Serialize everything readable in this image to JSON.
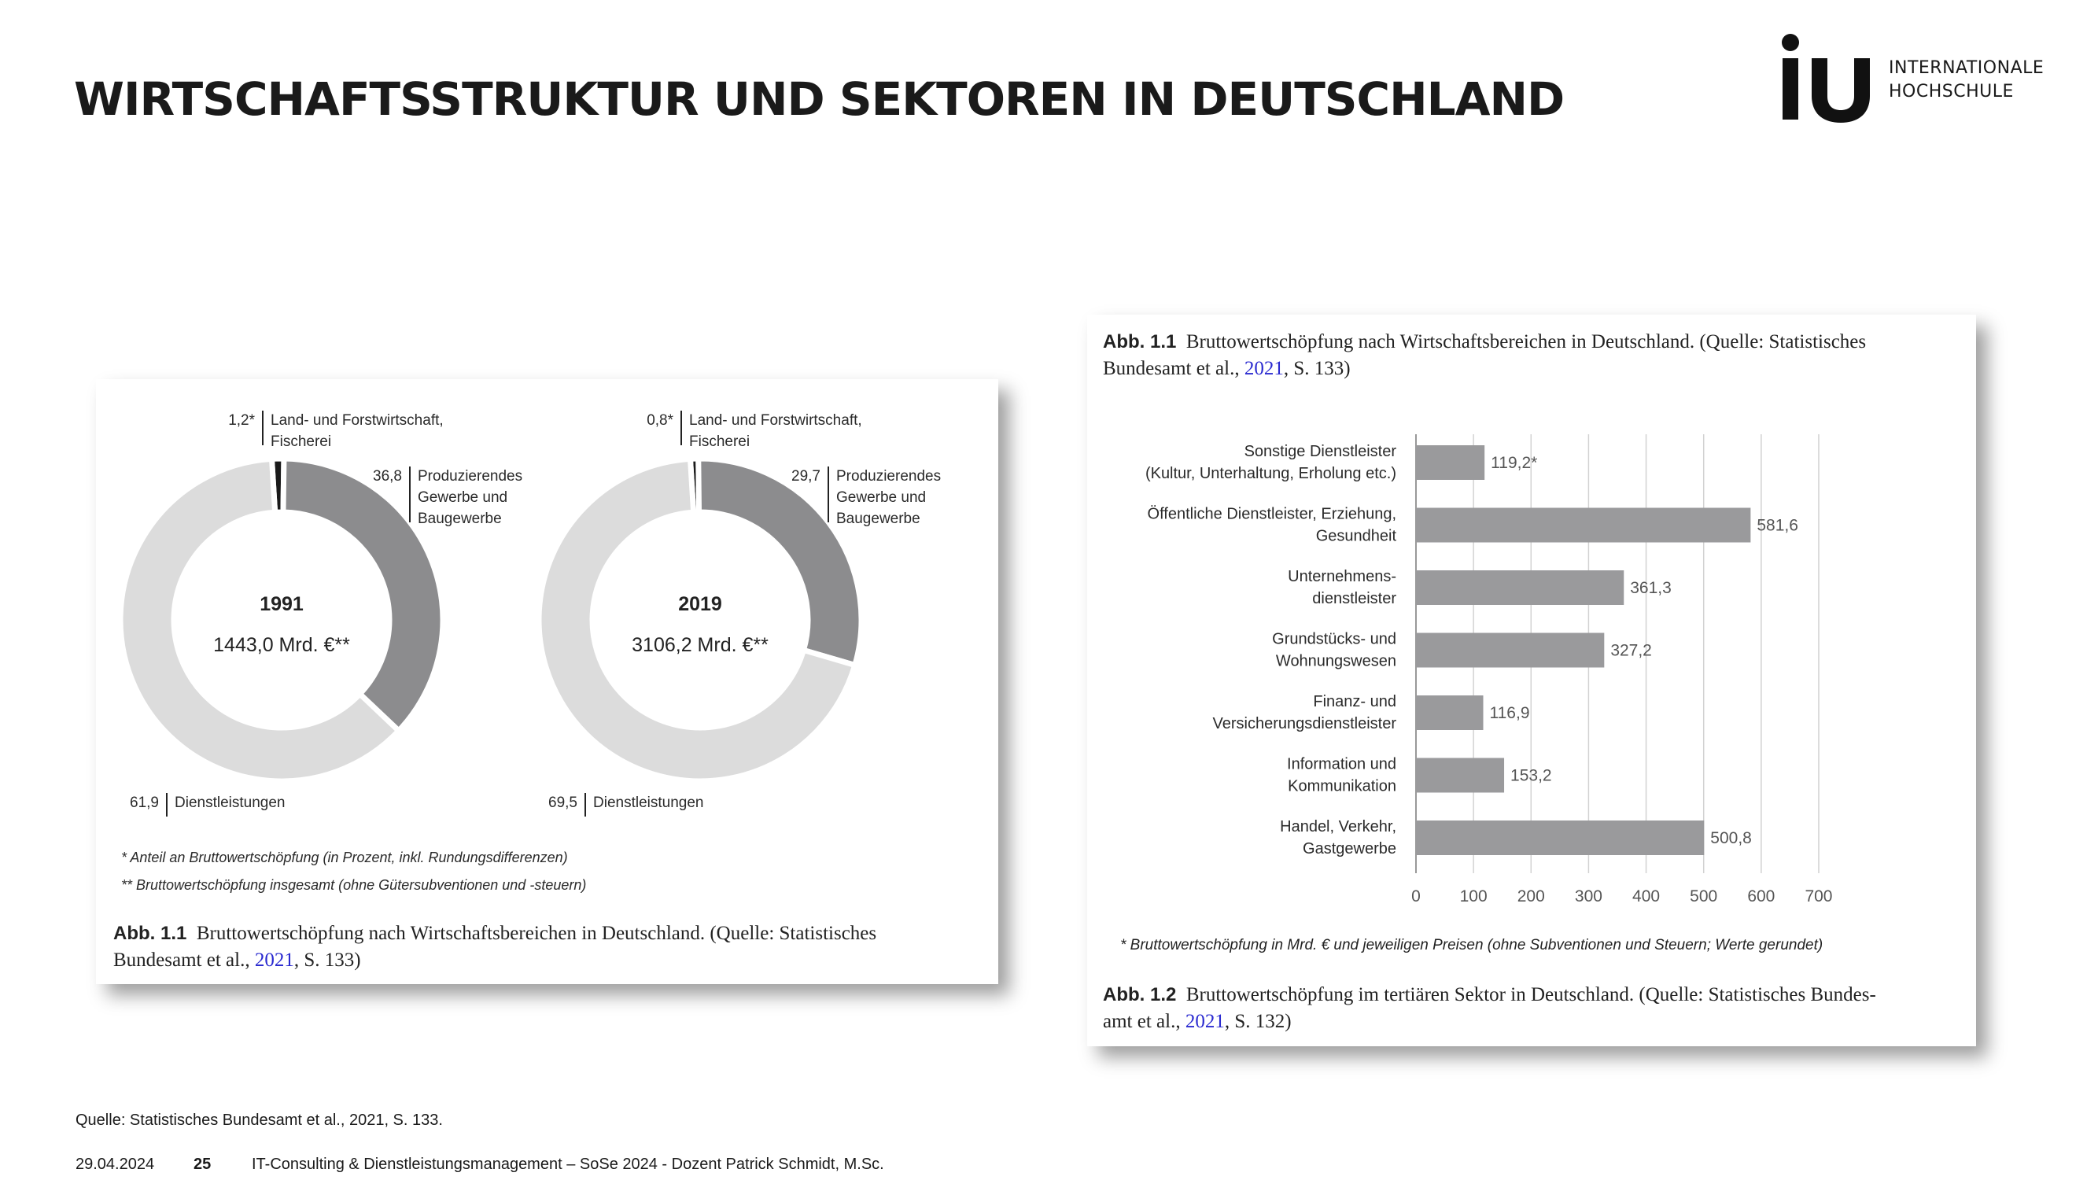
{
  "page": {
    "title": "WIRTSCHAFTSSTRUKTUR UND SEKTOREN IN DEUTSCHLAND",
    "logo": {
      "line1": "INTERNATIONALE",
      "line2": "HOCHSCHULE"
    },
    "source": "Quelle: Statistisches Bundesamt et al., 2021, S. 133.",
    "footer": {
      "date": "29.04.2024",
      "page_number": "25",
      "course": "IT-Consulting & Dienstleistungsmanagement – SoSe 2024 - Dozent Patrick Schmidt, M.Sc."
    }
  },
  "figure1": {
    "caption_label": "Abb. 1.1",
    "caption_text1": "Bruttowertschöpfung nach Wirtschaftsbereichen in Deutschland. (Quelle: Statistisches",
    "caption_text2a": "Bundesamt et al.,",
    "caption_link": "2021",
    "caption_text2b": ", S. 133)",
    "footnote1": "* Anteil an Bruttowertschöpfung (in Prozent, inkl. Rundungsdifferenzen)",
    "footnote2": "** Bruttowertschöpfung insgesamt (ohne Gütersubventionen und -steuern)"
  },
  "figure2": {
    "header_label": "Abb. 1.1",
    "header_text1": "Bruttowertschöpfung nach Wirtschaftsbereichen in Deutschland. (Quelle: Statistisches",
    "header_text2a": "Bundesamt et al.,",
    "header_link": "2021",
    "header_text2b": ", S. 133)",
    "footnote": "* Bruttowertschöpfung in Mrd. € und jeweiligen Preisen (ohne Subventionen und Steuern; Werte gerundet)",
    "caption_label": "Abb. 1.2",
    "caption_text1": "Bruttowertschöpfung im tertiären Sektor in Deutschland. (Quelle: Statistisches Bundes-",
    "caption_text2a": "amt et al.,",
    "caption_link": "2021",
    "caption_text2b": ", S. 132)"
  },
  "chart_data": [
    {
      "type": "pie",
      "variant": "donut",
      "center_year": "1991",
      "center_total": "1443,0 Mrd. €**",
      "slices": [
        {
          "label_lines": [
            "Land- und Forstwirtschaft,",
            "Fischerei"
          ],
          "value": 1.2,
          "value_text": "1,2*",
          "color": "#1a1a1a"
        },
        {
          "label_lines": [
            "Produzierendes",
            "Gewerbe und",
            "Baugewerbe"
          ],
          "value": 36.8,
          "value_text": "36,8",
          "color": "#8c8c8e"
        },
        {
          "label_lines": [
            "Dienstleistungen"
          ],
          "value": 61.9,
          "value_text": "61,9",
          "color": "#dcdcdc"
        }
      ]
    },
    {
      "type": "pie",
      "variant": "donut",
      "center_year": "2019",
      "center_total": "3106,2 Mrd. €**",
      "slices": [
        {
          "label_lines": [
            "Land- und Forstwirtschaft,",
            "Fischerei"
          ],
          "value": 0.8,
          "value_text": "0,8*",
          "color": "#1a1a1a"
        },
        {
          "label_lines": [
            "Produzierendes",
            "Gewerbe und",
            "Baugewerbe"
          ],
          "value": 29.7,
          "value_text": "29,7",
          "color": "#8c8c8e"
        },
        {
          "label_lines": [
            "Dienstleistungen"
          ],
          "value": 69.5,
          "value_text": "69,5",
          "color": "#dcdcdc"
        }
      ]
    },
    {
      "type": "bar",
      "orientation": "horizontal",
      "xlim": [
        0,
        700
      ],
      "xticks": [
        0,
        100,
        200,
        300,
        400,
        500,
        600,
        700
      ],
      "grid": "vertical",
      "bar_color": "#9a9a9c",
      "categories": [
        {
          "lines": [
            "Sonstige Dienstleister",
            "(Kultur, Unterhaltung, Erholung etc.)"
          ],
          "value": 119.2,
          "value_text": "119,2*"
        },
        {
          "lines": [
            "Öffentliche Dienstleister, Erziehung,",
            "Gesundheit"
          ],
          "value": 581.6,
          "value_text": "581,6"
        },
        {
          "lines": [
            "Unternehmens-",
            "dienstleister"
          ],
          "value": 361.3,
          "value_text": "361,3"
        },
        {
          "lines": [
            "Grundstücks- und",
            "Wohnungswesen"
          ],
          "value": 327.2,
          "value_text": "327,2"
        },
        {
          "lines": [
            "Finanz- und",
            "Versicherungsdienstleister"
          ],
          "value": 116.9,
          "value_text": "116,9"
        },
        {
          "lines": [
            "Information und",
            "Kommunikation"
          ],
          "value": 153.2,
          "value_text": "153,2"
        },
        {
          "lines": [
            "Handel, Verkehr,",
            "Gastgewerbe"
          ],
          "value": 500.8,
          "value_text": "500,8"
        }
      ]
    }
  ]
}
